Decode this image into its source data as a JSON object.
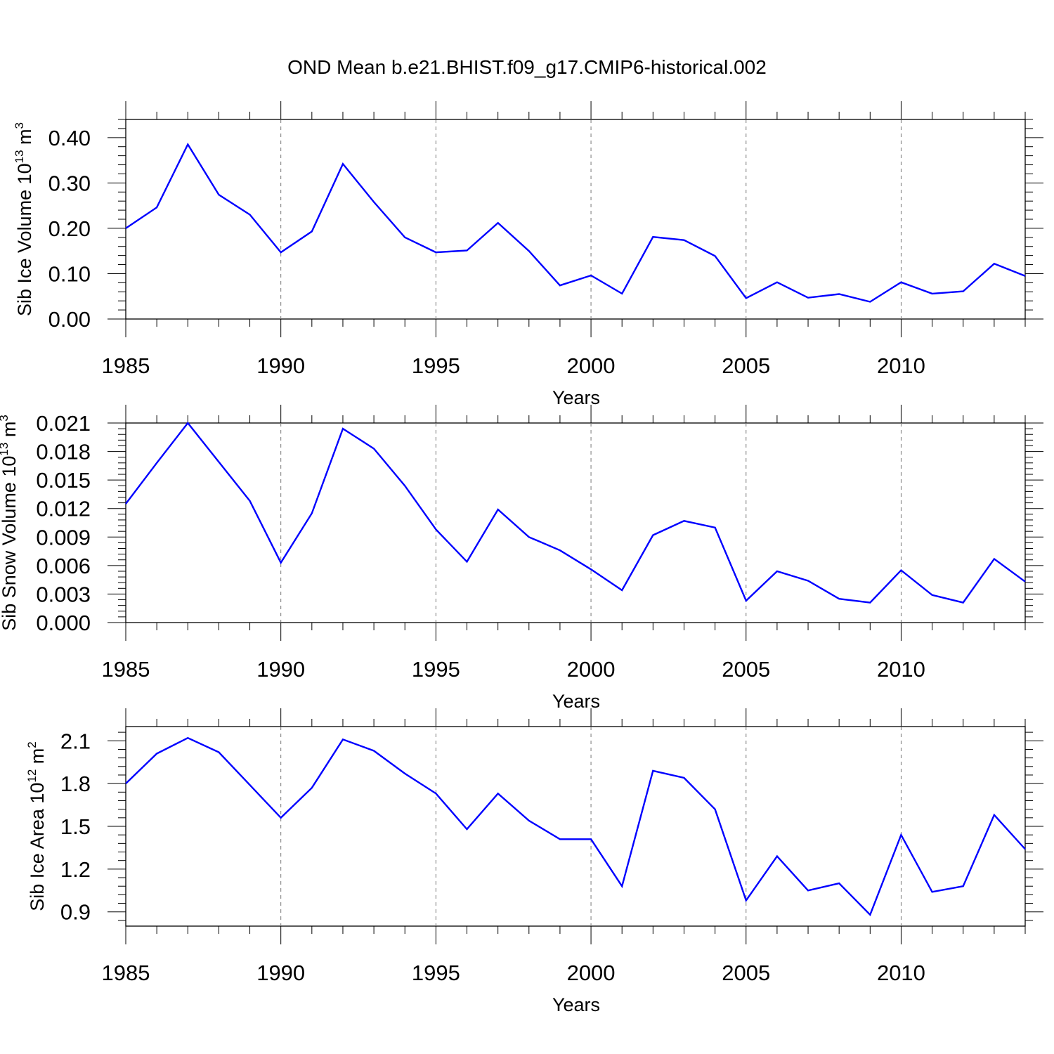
{
  "title": "OND Mean b.e21.BHIST.f09_g17.CMIP6-historical.002",
  "line_color": "#0000ff",
  "chart_data": [
    {
      "type": "line",
      "xlabel": "Years",
      "ylabel": "Sib Ice Volume 10",
      "ylabel_exp": "13",
      "ylabel_unit": " m",
      "ylabel_unit_exp": "3",
      "xlim": [
        1985,
        2014
      ],
      "ylim": [
        0,
        0.44
      ],
      "xticks": [
        1985,
        1990,
        1995,
        2000,
        2005,
        2010
      ],
      "yticks": [
        0,
        0.1,
        0.2,
        0.3,
        0.4
      ],
      "ytick_labels": [
        "0.00",
        "0.10",
        "0.20",
        "0.30",
        "0.40"
      ],
      "x": [
        1985,
        1986,
        1987,
        1988,
        1989,
        1990,
        1991,
        1992,
        1993,
        1994,
        1995,
        1996,
        1997,
        1998,
        1999,
        2000,
        2001,
        2002,
        2003,
        2004,
        2005,
        2006,
        2007,
        2008,
        2009,
        2010,
        2011,
        2012,
        2013,
        2014
      ],
      "series": [
        {
          "values": [
            0.2,
            0.246,
            0.385,
            0.274,
            0.23,
            0.147,
            0.193,
            0.342,
            0.258,
            0.18,
            0.147,
            0.151,
            0.212,
            0.15,
            0.074,
            0.096,
            0.056,
            0.181,
            0.174,
            0.139,
            0.046,
            0.081,
            0.047,
            0.055,
            0.038,
            0.081,
            0.056,
            0.061,
            0.122,
            0.095
          ]
        }
      ]
    },
    {
      "type": "line",
      "xlabel": "Years",
      "ylabel": "Sib Snow Volume 10",
      "ylabel_exp": "13",
      "ylabel_unit": " m",
      "ylabel_unit_exp": "3",
      "xlim": [
        1985,
        2014
      ],
      "ylim": [
        0,
        0.021
      ],
      "xticks": [
        1985,
        1990,
        1995,
        2000,
        2005,
        2010
      ],
      "yticks": [
        0,
        0.003,
        0.006,
        0.009,
        0.012,
        0.015,
        0.018,
        0.021
      ],
      "ytick_labels": [
        "0.000",
        "0.003",
        "0.006",
        "0.009",
        "0.012",
        "0.015",
        "0.018",
        "0.021"
      ],
      "x": [
        1985,
        1986,
        1987,
        1988,
        1989,
        1990,
        1991,
        1992,
        1993,
        1994,
        1995,
        1996,
        1997,
        1998,
        1999,
        2000,
        2001,
        2002,
        2003,
        2004,
        2005,
        2006,
        2007,
        2008,
        2009,
        2010,
        2011,
        2012,
        2013,
        2014
      ],
      "series": [
        {
          "values": [
            0.0125,
            0.0168,
            0.021,
            0.0169,
            0.0128,
            0.0063,
            0.0115,
            0.0204,
            0.0183,
            0.0144,
            0.0098,
            0.0064,
            0.0119,
            0.009,
            0.0076,
            0.0056,
            0.0034,
            0.0092,
            0.0107,
            0.01,
            0.0023,
            0.0054,
            0.0044,
            0.0025,
            0.0021,
            0.0055,
            0.0029,
            0.0021,
            0.0067,
            0.0043
          ]
        }
      ]
    },
    {
      "type": "line",
      "xlabel": "Years",
      "ylabel": "Sib Ice Area 10",
      "ylabel_exp": "12",
      "ylabel_unit": " m",
      "ylabel_unit_exp": "2",
      "xlim": [
        1985,
        2014
      ],
      "ylim": [
        0.8,
        2.2
      ],
      "xticks": [
        1985,
        1990,
        1995,
        2000,
        2005,
        2010
      ],
      "yticks": [
        0.9,
        1.2,
        1.5,
        1.8,
        2.1
      ],
      "ytick_labels": [
        "0.9",
        "1.2",
        "1.5",
        "1.8",
        "2.1"
      ],
      "x": [
        1985,
        1986,
        1987,
        1988,
        1989,
        1990,
        1991,
        1992,
        1993,
        1994,
        1995,
        1996,
        1997,
        1998,
        1999,
        2000,
        2001,
        2002,
        2003,
        2004,
        2005,
        2006,
        2007,
        2008,
        2009,
        2010,
        2011,
        2012,
        2013,
        2014
      ],
      "series": [
        {
          "values": [
            1.8,
            2.01,
            2.12,
            2.02,
            1.79,
            1.56,
            1.77,
            2.11,
            2.03,
            1.87,
            1.73,
            1.48,
            1.73,
            1.54,
            1.41,
            1.41,
            1.08,
            1.89,
            1.84,
            1.62,
            0.98,
            1.29,
            1.05,
            1.1,
            0.88,
            1.44,
            1.04,
            1.08,
            1.58,
            1.34
          ]
        }
      ]
    }
  ]
}
